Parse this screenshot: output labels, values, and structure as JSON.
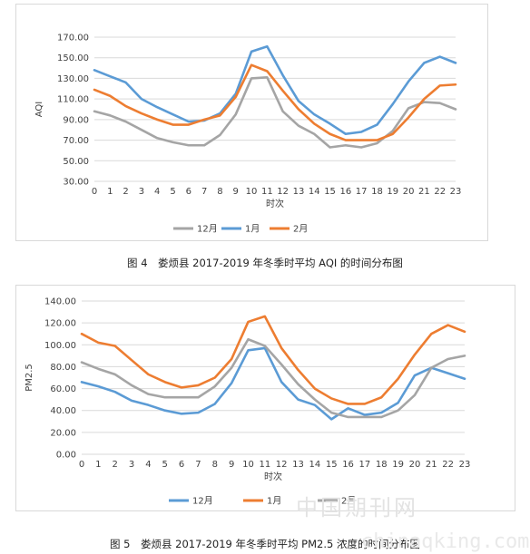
{
  "captions": {
    "fig4": "图 4　娄烦县 2017-2019 年冬季时平均 AQI 的时间分布图",
    "fig5": "图 5　娄烦县 2017-2019 年冬季时平均 PM2.5 浓度的时间分布图"
  },
  "watermark": {
    "cn": "中国期刊网",
    "en": "chinaqking.com"
  },
  "chart_data": [
    {
      "type": "line",
      "xlabel": "时次",
      "ylabel": "AQI",
      "ylim": [
        30,
        170
      ],
      "yticks": [
        "30.00",
        "50.00",
        "70.00",
        "90.00",
        "110.00",
        "130.00",
        "150.00",
        "170.00"
      ],
      "x": [
        0,
        1,
        2,
        3,
        4,
        5,
        6,
        7,
        8,
        9,
        10,
        11,
        12,
        13,
        14,
        15,
        16,
        17,
        18,
        19,
        20,
        21,
        22,
        23
      ],
      "grid": true,
      "legend": "bottom",
      "series": [
        {
          "name": "12月",
          "color": "#a5a5a5",
          "values": [
            98,
            94,
            88,
            80,
            72,
            68,
            65,
            65,
            75,
            95,
            130,
            131,
            98,
            84,
            76,
            63,
            65,
            63,
            67,
            79,
            101,
            107,
            106,
            100
          ]
        },
        {
          "name": "1月",
          "color": "#5b9bd5",
          "values": [
            138,
            132,
            126,
            110,
            102,
            95,
            88,
            89,
            96,
            115,
            156,
            161,
            133,
            108,
            95,
            86,
            76,
            78,
            85,
            105,
            127,
            145,
            151,
            145
          ]
        },
        {
          "name": "2月",
          "color": "#ed7d31",
          "values": [
            119,
            113,
            103,
            96,
            90,
            85,
            85,
            90,
            94,
            112,
            143,
            137,
            118,
            100,
            86,
            76,
            70,
            70,
            70,
            76,
            92,
            110,
            123,
            124
          ]
        }
      ]
    },
    {
      "type": "line",
      "xlabel": "时次",
      "ylabel": "PM2.5",
      "ylim": [
        0,
        140
      ],
      "yticks": [
        "0.00",
        "20.00",
        "40.00",
        "60.00",
        "80.00",
        "100.00",
        "120.00",
        "140.00"
      ],
      "x": [
        0,
        1,
        2,
        3,
        4,
        5,
        6,
        7,
        8,
        9,
        10,
        11,
        12,
        13,
        14,
        15,
        16,
        17,
        18,
        19,
        20,
        21,
        22,
        23
      ],
      "grid": true,
      "legend": "bottom",
      "series": [
        {
          "name": "12月",
          "color": "#5b9bd5",
          "values": [
            66,
            62,
            57,
            49,
            45,
            40,
            37,
            38,
            46,
            65,
            95,
            97,
            66,
            50,
            45,
            32,
            42,
            36,
            38,
            47,
            72,
            79,
            74,
            69
          ]
        },
        {
          "name": "1月",
          "color": "#ed7d31",
          "values": [
            110,
            102,
            99,
            86,
            73,
            66,
            61,
            63,
            70,
            87,
            121,
            126,
            97,
            77,
            60,
            51,
            46,
            46,
            52,
            69,
            91,
            110,
            118,
            112
          ]
        },
        {
          "name": "2月",
          "color": "#a5a5a5",
          "values": [
            84,
            78,
            73,
            63,
            55,
            52,
            52,
            52,
            62,
            79,
            105,
            99,
            82,
            64,
            50,
            38,
            34,
            34,
            34,
            40,
            54,
            79,
            87,
            90
          ]
        }
      ]
    }
  ]
}
